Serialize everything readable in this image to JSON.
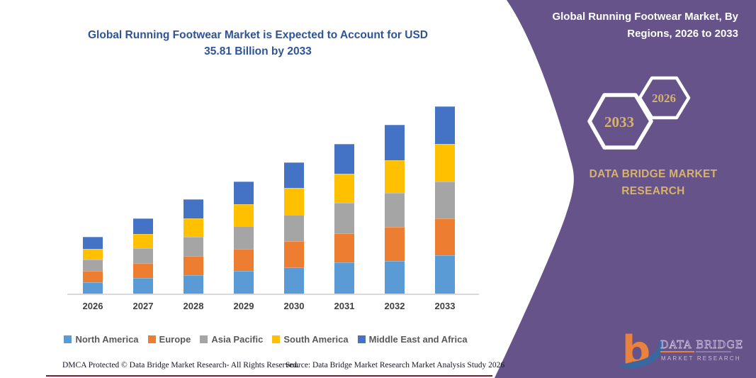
{
  "chart_title": "Global Running Footwear Market is Expected to Account for USD 35.81 Billion by 2033",
  "right_panel": {
    "heading": "Global Running Footwear Market, By Regions, 2026 to 2033",
    "hexagons": [
      {
        "label": "2033"
      },
      {
        "label": "2026"
      }
    ],
    "brand_text": "DATA BRIDGE MARKET RESEARCH",
    "logo": {
      "title": "DATA BRIDGE",
      "subtitle": "MARKET RESEARCH"
    },
    "colors": {
      "background": "#655389",
      "gold": "#d6b26c",
      "hexagon_stroke": "#ffffff",
      "logo_orange": "#e8823d",
      "logo_blue": "#3a679f"
    }
  },
  "footer": {
    "left": "DMCA Protected © Data Bridge Market Research-  All Rights Reserved.",
    "right": "Source: Data Bridge Market Research  Market Analysis Study 2026",
    "rule_color": "#771f2c"
  },
  "chart_data": {
    "type": "bar",
    "stacked": true,
    "title": "Global Running Footwear Market is Expected to Account for USD 35.81 Billion by 2033",
    "unit": "USD Billion",
    "categories": [
      "2026",
      "2027",
      "2028",
      "2029",
      "2030",
      "2031",
      "2032",
      "2033"
    ],
    "series": [
      {
        "name": "North America",
        "color": "#5B9BD5",
        "values": [
          2.3,
          3.1,
          3.7,
          4.4,
          5.1,
          6.1,
          6.4,
          7.4
        ]
      },
      {
        "name": "Europe",
        "color": "#ED7D31",
        "values": [
          2.2,
          2.8,
          3.6,
          4.3,
          5.0,
          5.5,
          6.5,
          7.1
        ]
      },
      {
        "name": "Asia Pacific",
        "color": "#A5A5A5",
        "values": [
          2.1,
          2.9,
          3.6,
          4.3,
          5.0,
          5.9,
          6.4,
          7.0
        ]
      },
      {
        "name": "South America",
        "color": "#FFC000",
        "values": [
          2.1,
          2.7,
          3.6,
          4.2,
          5.2,
          5.5,
          6.3,
          7.2
        ]
      },
      {
        "name": "Middle East and Africa",
        "color": "#4472C4",
        "values": [
          2.2,
          3.0,
          3.6,
          4.3,
          4.8,
          5.7,
          6.7,
          7.1
        ]
      }
    ],
    "totals_estimated": [
      10.9,
      14.5,
      18.1,
      21.5,
      25.1,
      28.7,
      32.3,
      35.81
    ],
    "highlight_value": "USD 35.81 Billion by 2033",
    "legend_position": "bottom",
    "gridlines": false,
    "ylim": [
      0,
      36
    ],
    "axis": {
      "baseline_color": "#d9d9d9",
      "label_color": "#3f3f3f"
    }
  }
}
